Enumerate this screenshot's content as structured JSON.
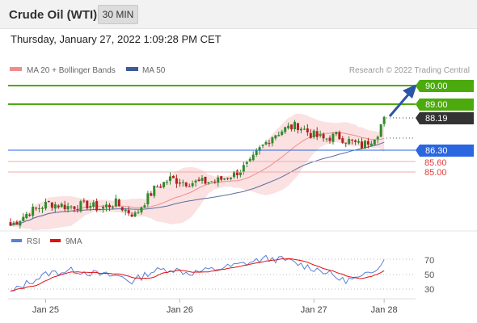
{
  "header": {
    "title": "Crude Oil (WTI)",
    "timeframe": "30 MIN"
  },
  "datetime": "Thursday, January 27, 2022 1:09:28 PM CET",
  "legend": {
    "ma20": "MA 20 + Bollinger Bands",
    "ma50": "MA 50",
    "copyright": "Research © 2022 Trading Central"
  },
  "colors": {
    "resistance": "#4caa0f",
    "pivot": "#2a66e0",
    "support": "#e23b3b",
    "arrow": "#2a55a8",
    "last_price_bg": "#333333",
    "bollinger_fill": "#fbe1e1",
    "ma20": "#f08c8c",
    "ma50": "#5a6ea0",
    "candle_up": "#2e8b2e",
    "candle_down": "#b22222"
  },
  "levels": {
    "r2": "90.00",
    "r1": "89.00",
    "last": "88.19",
    "pivot": "86.30",
    "s1": "85.60",
    "s2": "85.00"
  },
  "rsi_legend": {
    "rsi": "RSI",
    "ma": "9MA"
  },
  "chart_data": [
    {
      "type": "candlestick",
      "title": "",
      "x": [
        "Jan 25",
        "Jan 26",
        "Jan 27",
        "Jan 28"
      ],
      "levels": [
        90.0,
        89.0,
        88.19,
        86.3,
        85.6,
        85.0
      ],
      "series": [
        {
          "name": "MA 20 + Bollinger Bands"
        },
        {
          "name": "MA 50"
        }
      ],
      "ylim": [
        80.9,
        90.6
      ]
    },
    {
      "type": "line",
      "title": "",
      "x": [
        "Jan 25",
        "Jan 26",
        "Jan 27",
        "Jan 28"
      ],
      "series": [
        {
          "name": "RSI"
        },
        {
          "name": "9MA"
        }
      ],
      "y_ticks": [
        70,
        50,
        30
      ],
      "ylim": [
        15,
        90
      ]
    }
  ]
}
